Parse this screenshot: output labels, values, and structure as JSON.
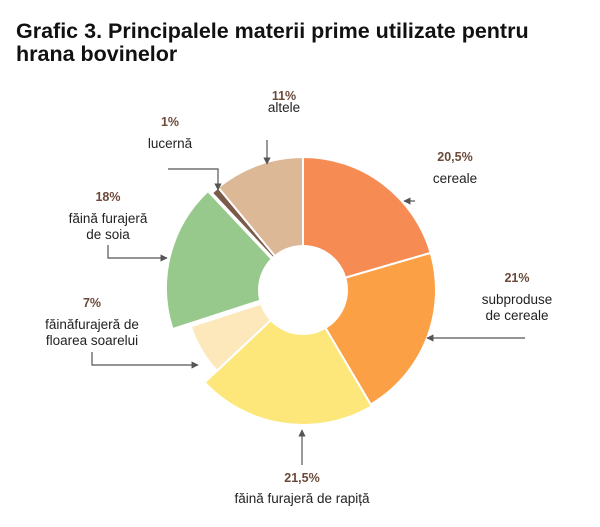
{
  "chart_data": {
    "type": "pie",
    "title": "Grafic 3. Principalele materii prime utilizate pentru hrana bovinelor",
    "slices": [
      {
        "value_label": "20,5%",
        "value": 20.5,
        "label_lines": [
          "cereale"
        ],
        "color": "#f68b53"
      },
      {
        "value_label": "21%",
        "value": 21,
        "label_lines": [
          "subproduse",
          "de cereale"
        ],
        "color": "#fba044"
      },
      {
        "value_label": "21,5%",
        "value": 21.5,
        "label_lines": [
          "făină furajeră de rapiță"
        ],
        "color": "#fde77a"
      },
      {
        "value_label": "7%",
        "value": 7,
        "label_lines": [
          "făinăfurajeră de",
          "floarea soarelui"
        ],
        "color": "#fde8bc"
      },
      {
        "value_label": "18%",
        "value": 18,
        "label_lines": [
          "făină furajeră",
          "de soia"
        ],
        "color": "#97c98d"
      },
      {
        "value_label": "1%",
        "value": 1,
        "label_lines": [
          "lucernă"
        ],
        "color": "#7a5a48"
      },
      {
        "value_label": "11%",
        "value": 11,
        "label_lines": [
          "altele"
        ],
        "color": "#ddb897"
      }
    ]
  }
}
